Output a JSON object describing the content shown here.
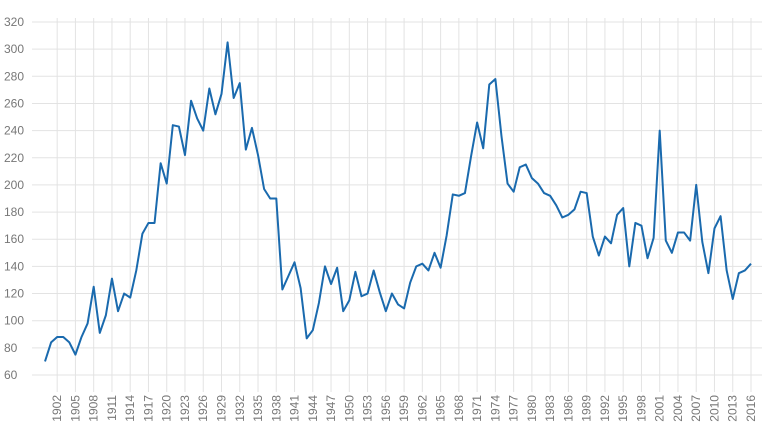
{
  "chart_data": {
    "type": "line",
    "x": [
      1900,
      1901,
      1902,
      1903,
      1904,
      1905,
      1906,
      1907,
      1908,
      1909,
      1910,
      1911,
      1912,
      1913,
      1914,
      1915,
      1916,
      1917,
      1918,
      1919,
      1920,
      1921,
      1922,
      1923,
      1924,
      1925,
      1926,
      1927,
      1928,
      1929,
      1930,
      1931,
      1932,
      1933,
      1934,
      1935,
      1936,
      1937,
      1938,
      1939,
      1940,
      1941,
      1942,
      1943,
      1944,
      1945,
      1946,
      1947,
      1948,
      1949,
      1950,
      1951,
      1952,
      1953,
      1954,
      1955,
      1956,
      1957,
      1958,
      1959,
      1960,
      1961,
      1962,
      1963,
      1964,
      1965,
      1966,
      1967,
      1968,
      1969,
      1970,
      1971,
      1972,
      1973,
      1974,
      1975,
      1976,
      1977,
      1978,
      1979,
      1980,
      1981,
      1982,
      1983,
      1984,
      1985,
      1986,
      1987,
      1988,
      1989,
      1990,
      1991,
      1992,
      1993,
      1994,
      1995,
      1996,
      1997,
      1998,
      1999,
      2000,
      2001,
      2002,
      2003,
      2004,
      2005,
      2006,
      2007,
      2008,
      2009,
      2010,
      2011,
      2012,
      2013,
      2014,
      2015,
      2016
    ],
    "series": [
      {
        "color": "#1a6aae",
        "values": [
          70,
          84,
          88,
          88,
          84,
          75,
          88,
          98,
          125,
          91,
          104,
          131,
          107,
          120,
          117,
          137,
          164,
          172,
          172,
          216,
          201,
          244,
          243,
          222,
          262,
          249,
          240,
          271,
          252,
          267,
          305,
          264,
          275,
          226,
          242,
          222,
          197,
          190,
          190,
          123,
          133,
          143,
          124,
          87,
          93,
          113,
          140,
          127,
          139,
          107,
          115,
          136,
          118,
          120,
          137,
          121,
          107,
          120,
          112,
          109,
          128,
          140,
          142,
          137,
          150,
          139,
          163,
          193,
          192,
          194,
          221,
          246,
          227,
          274,
          278,
          236,
          201,
          195,
          213,
          215,
          205,
          201,
          194,
          192,
          185,
          176,
          178,
          182,
          195,
          194,
          162,
          148,
          162,
          157,
          178,
          183,
          140,
          172,
          170,
          146,
          161,
          240,
          159,
          150,
          165,
          165,
          159,
          200,
          158,
          135,
          168,
          177,
          137,
          116,
          135,
          137,
          142
        ]
      }
    ],
    "xlim": [
      1900,
      2016
    ],
    "xticks": [
      1902,
      1905,
      1908,
      1911,
      1914,
      1917,
      1920,
      1923,
      1926,
      1929,
      1932,
      1935,
      1938,
      1941,
      1944,
      1947,
      1950,
      1953,
      1956,
      1959,
      1962,
      1965,
      1968,
      1971,
      1974,
      1977,
      1980,
      1983,
      1986,
      1989,
      1992,
      1995,
      1998,
      2001,
      2004,
      2007,
      2010,
      2013,
      2016
    ],
    "ylim": [
      60,
      320
    ],
    "yticks": [
      60,
      80,
      100,
      120,
      140,
      160,
      180,
      200,
      220,
      240,
      260,
      280,
      300,
      320
    ],
    "grid": true
  }
}
